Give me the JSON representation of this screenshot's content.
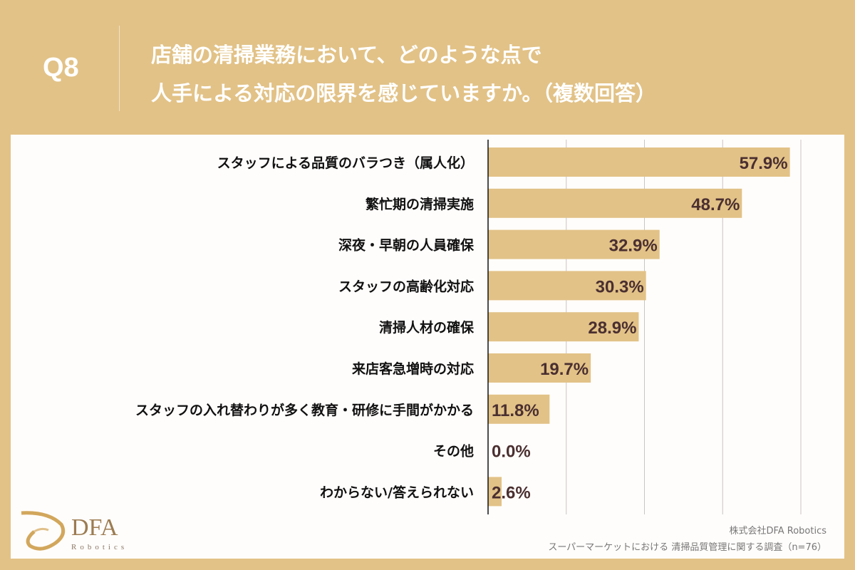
{
  "header": {
    "q_label": "Q8",
    "title_line1": "店舗の清掃業務において、どのような点で",
    "title_line2": "人手による対応の限界を感じていますか。（複数回答）"
  },
  "chart_data": {
    "type": "bar",
    "orientation": "horizontal",
    "categories": [
      "スタッフによる品質のバラつき（属人化）",
      "繁忙期の清掃実施",
      "深夜・早朝の人員確保",
      "スタッフの高齢化対応",
      "清掃人材の確保",
      "来店客急増時の対応",
      "スタッフの入れ替わりが多く教育・研修に手間がかかる",
      "その他",
      "わからない/答えられない"
    ],
    "values": [
      57.9,
      48.7,
      32.9,
      30.3,
      28.9,
      19.7,
      11.8,
      0.0,
      2.6
    ],
    "value_labels": [
      "57.9%",
      "48.7%",
      "32.9%",
      "30.3%",
      "28.9%",
      "19.7%",
      "11.8%",
      "0.0%",
      "2.6%"
    ],
    "xlim": [
      0,
      60
    ],
    "gridlines": [
      15,
      30,
      45,
      60
    ],
    "grid": true,
    "bar_color": "#e2c287"
  },
  "footer": {
    "logo_text": "DFA",
    "logo_sub": "Robotics",
    "source_company": "株式会社DFA Robotics",
    "source_survey": "スーパーマーケットにおける 清掃品質管理に関する調査（n=76）"
  }
}
